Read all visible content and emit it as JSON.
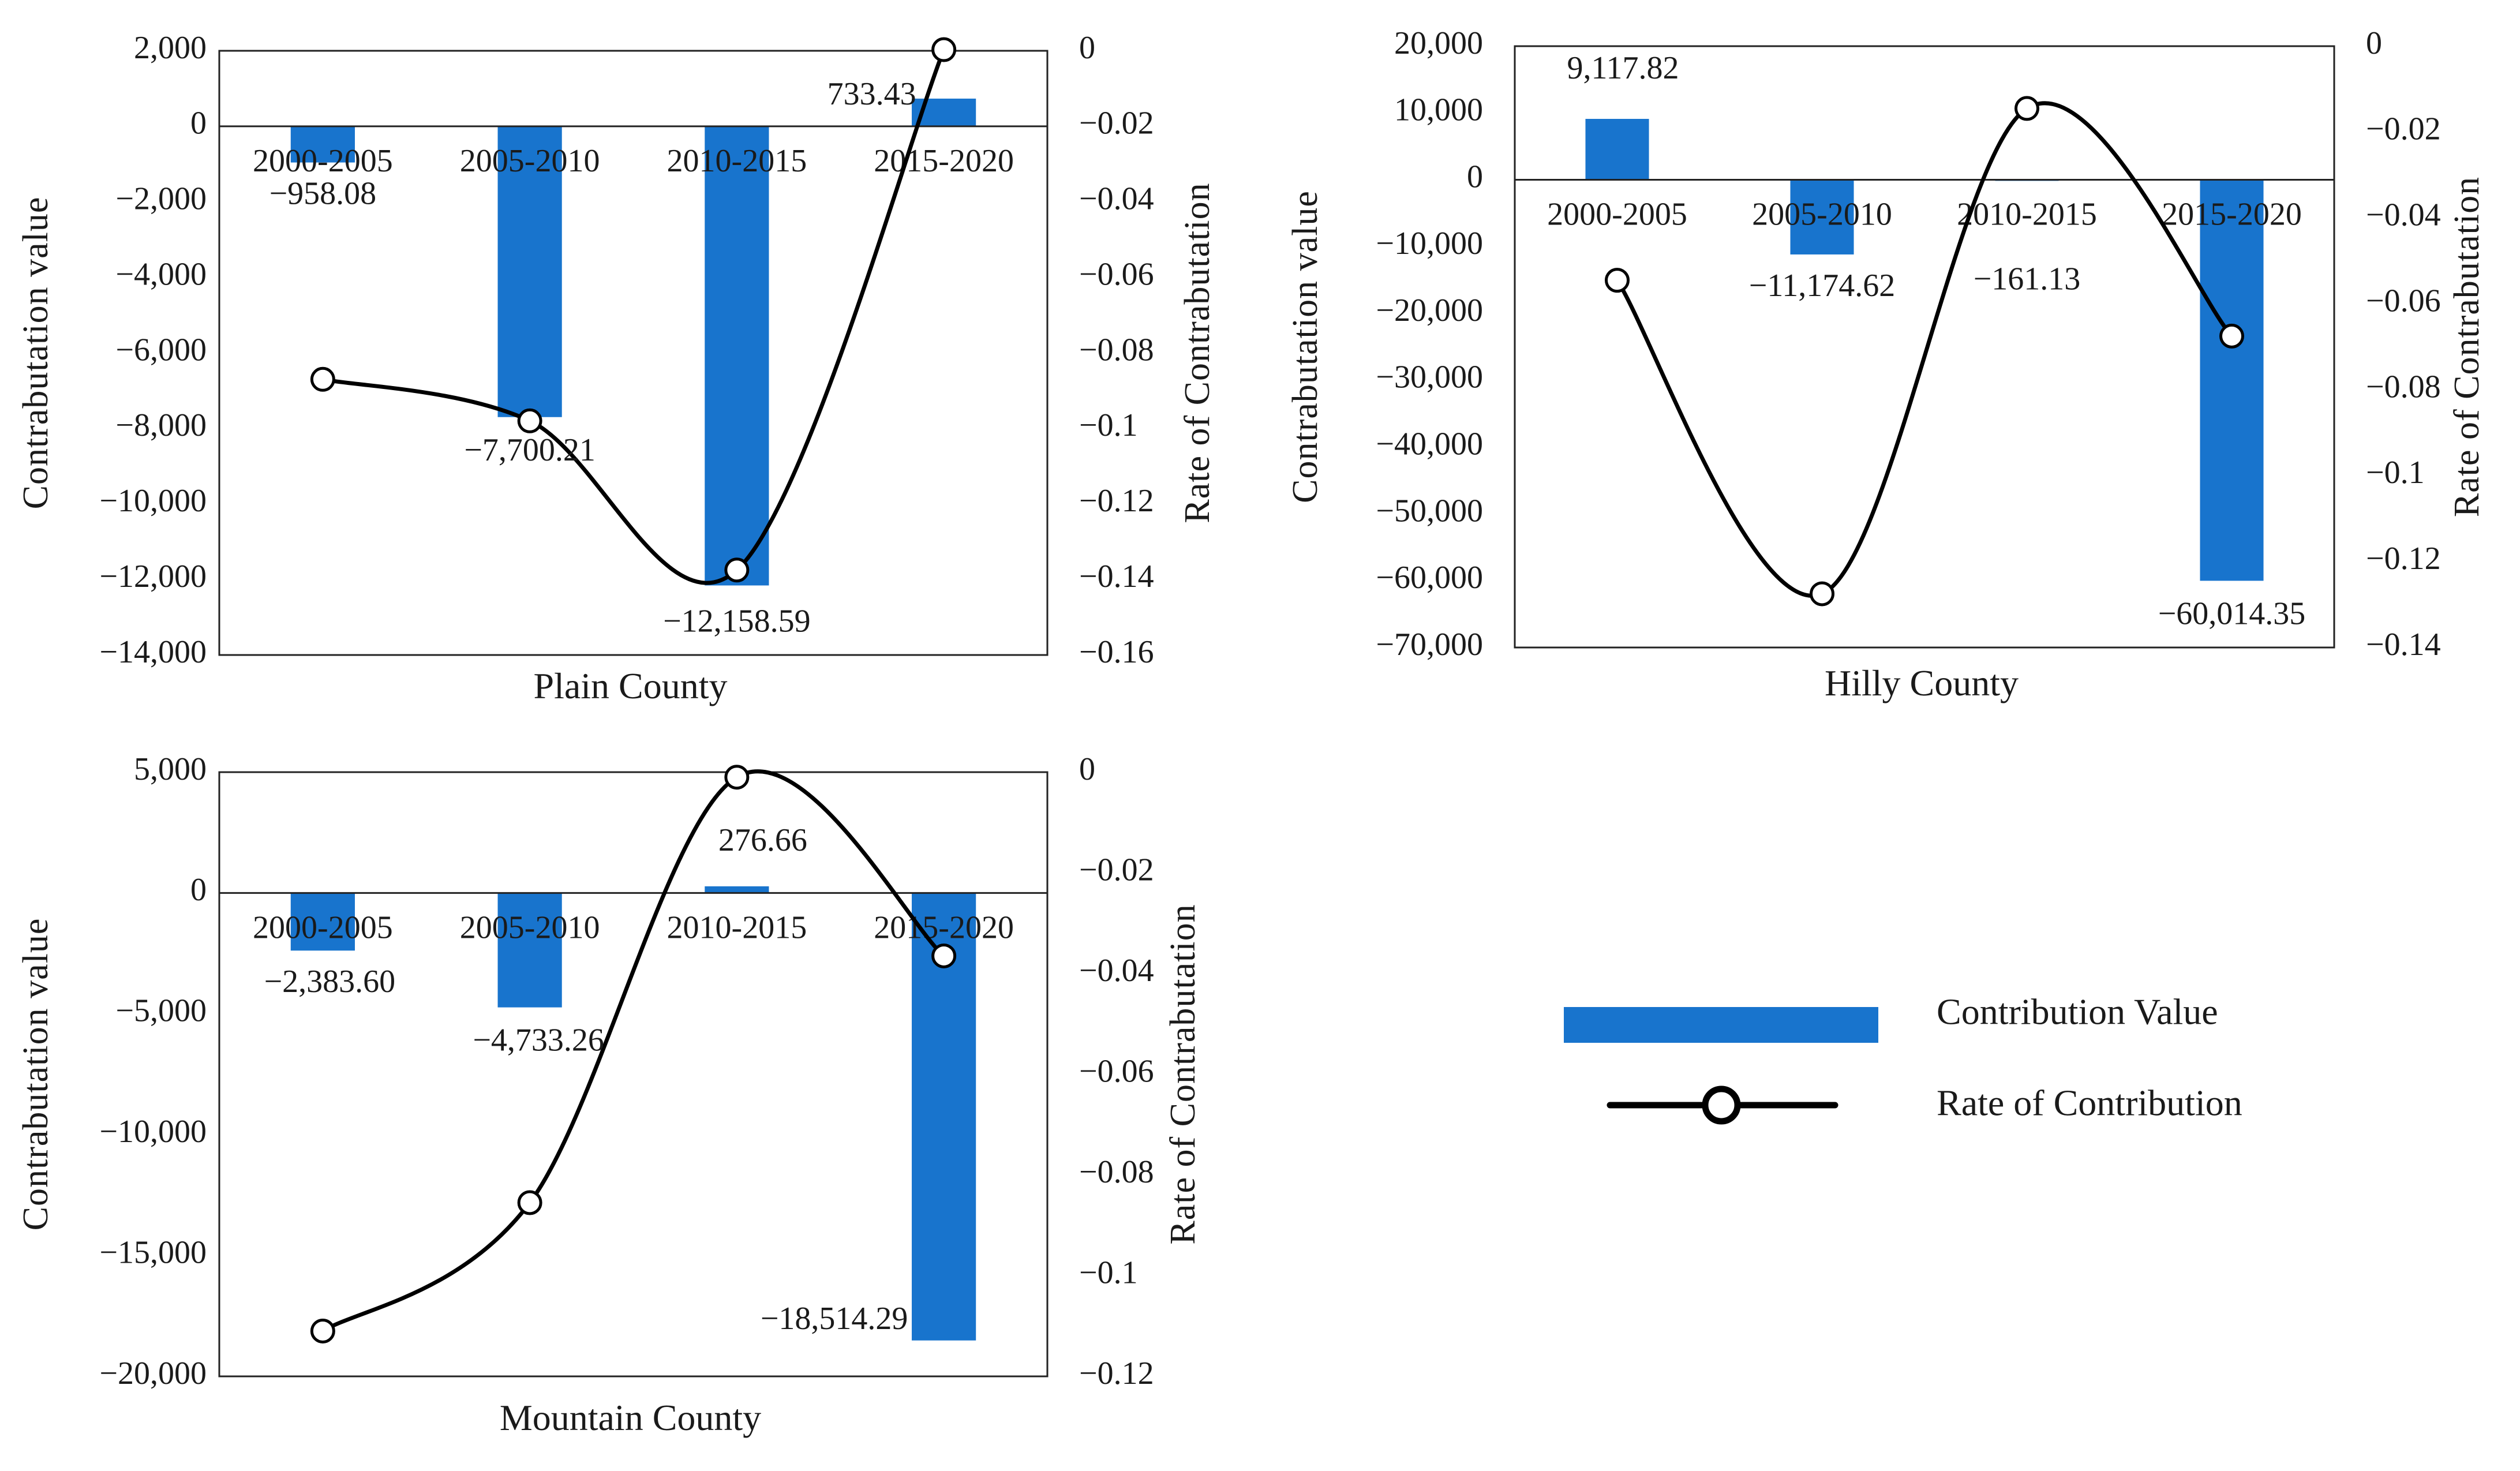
{
  "legend": {
    "bar_label": "Contribution Value",
    "line_label": "Rate of Contribution",
    "bar_color": "#1874cd",
    "line_color": "#000000"
  },
  "chart_data": [
    {
      "type": "bar+line",
      "title": "Plain County",
      "ylabel": "Contrabutation  value",
      "y2label": "Rate  of  Contrabutation",
      "categories": [
        "2000-2005",
        "2005-2010",
        "2010-2015",
        "2015-2020"
      ],
      "bar_values": [
        -958.08,
        -7700.21,
        -12158.59,
        733.43
      ],
      "bar_labels": [
        "−958.08",
        "−7,700.21",
        "−12,158.59",
        "733.43"
      ],
      "rate_values": [
        -0.087,
        -0.098,
        -0.1375,
        0.0003
      ],
      "ylim": [
        -14000,
        2000
      ],
      "y_ticks": [
        2000,
        0,
        -2000,
        -4000,
        -6000,
        -8000,
        -10000,
        -12000,
        -14000
      ],
      "y_tick_labels": [
        "2,000",
        "0",
        "−2,000",
        "−4,000",
        "−6,000",
        "−8,000",
        "−10,000",
        "−12,000",
        "−14,000"
      ],
      "y2lim": [
        -0.16,
        0
      ],
      "y2_ticks": [
        0,
        -0.02,
        -0.04,
        -0.06,
        -0.08,
        -0.1,
        -0.12,
        -0.14,
        -0.16
      ],
      "y2_tick_labels": [
        "0",
        "−0.02",
        "−0.04",
        "−0.06",
        "−0.08",
        "−0.1",
        "−0.12",
        "−0.14",
        "−0.16"
      ]
    },
    {
      "type": "bar+line",
      "title": "Hilly County",
      "ylabel": "Contrabutation  value",
      "y2label": "Rate  of  Contrabutation",
      "categories": [
        "2000-2005",
        "2005-2010",
        "2010-2015",
        "2015-2020"
      ],
      "bar_values": [
        9117.82,
        -11174.62,
        -161.13,
        -60014.35
      ],
      "bar_labels": [
        "9,117.82",
        "−11,174.62",
        "−161.13",
        "−60,014.35"
      ],
      "rate_values": [
        -0.0545,
        -0.1275,
        -0.0145,
        -0.0675
      ],
      "ylim": [
        -70000,
        20000
      ],
      "y_ticks": [
        20000,
        10000,
        0,
        -10000,
        -20000,
        -30000,
        -40000,
        -50000,
        -60000,
        -70000
      ],
      "y_tick_labels": [
        "20,000",
        "10,000",
        "0",
        "−10,000",
        "−20,000",
        "−30,000",
        "−40,000",
        "−50,000",
        "−60,000",
        "−70,000"
      ],
      "y2lim": [
        -0.14,
        0
      ],
      "y2_ticks": [
        0,
        -0.02,
        -0.04,
        -0.06,
        -0.08,
        -0.1,
        -0.12,
        -0.14
      ],
      "y2_tick_labels": [
        "0",
        "−0.02",
        "−0.04",
        "−0.06",
        "−0.08",
        "−0.1",
        "−0.12",
        "−0.14"
      ]
    },
    {
      "type": "bar+line",
      "title": "Mountain County",
      "ylabel": "Contrabutation  value",
      "y2label": "Rate  of  Contrabutation",
      "categories": [
        "2000-2005",
        "2005-2010",
        "2010-2015",
        "2015-2020"
      ],
      "bar_values": [
        -2383.6,
        -4733.26,
        276.66,
        -18514.29
      ],
      "bar_labels": [
        "−2,383.60",
        "−4,733.26",
        "276.66",
        "−18,514.29"
      ],
      "rate_values": [
        -0.111,
        -0.0855,
        -0.001,
        -0.0365
      ],
      "ylim": [
        -20000,
        5000
      ],
      "y_ticks": [
        5000,
        0,
        -5000,
        -10000,
        -15000,
        -20000
      ],
      "y_tick_labels": [
        "5,000",
        "0",
        "−5,000",
        "−10,000",
        "−15,000",
        "−20,000"
      ],
      "y2lim": [
        -0.12,
        0
      ],
      "y2_ticks": [
        0,
        -0.02,
        -0.04,
        -0.06,
        -0.08,
        -0.1,
        -0.12
      ],
      "y2_tick_labels": [
        "0",
        "−0.02",
        "−0.04",
        "−0.06",
        "−0.08",
        "−0.1",
        "−0.12"
      ]
    }
  ]
}
